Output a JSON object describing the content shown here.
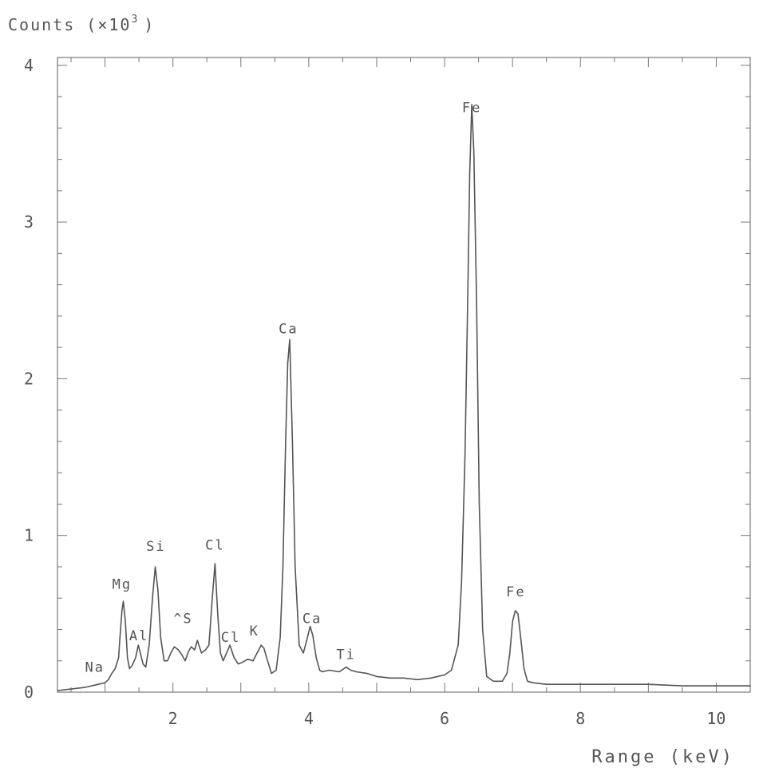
{
  "chart_data": {
    "type": "line",
    "title": "",
    "ylabel": "Counts (×10³)",
    "ylabel_base": "Counts (×10",
    "ylabel_exp": "3",
    "ylabel_close": ")",
    "xlabel": "Range (keV)",
    "xlim": [
      0.3,
      10.5
    ],
    "ylim": [
      0,
      4.05
    ],
    "x_ticks": [
      2,
      4,
      6,
      8,
      10
    ],
    "x_tick_labels": [
      "2",
      "4",
      "6",
      "8",
      "10"
    ],
    "y_ticks": [
      0,
      1,
      2,
      3,
      4
    ],
    "y_tick_labels": [
      "0",
      "1",
      "2",
      "3",
      "4"
    ],
    "grid": false,
    "series": [
      {
        "x": [
          0.3,
          0.5,
          0.7,
          0.9,
          1.0,
          1.05,
          1.1,
          1.15,
          1.2,
          1.22,
          1.25,
          1.27,
          1.3,
          1.33,
          1.36,
          1.4,
          1.45,
          1.49,
          1.52,
          1.56,
          1.6,
          1.65,
          1.7,
          1.74,
          1.78,
          1.82,
          1.87,
          1.92,
          1.97,
          2.02,
          2.08,
          2.13,
          2.18,
          2.23,
          2.27,
          2.32,
          2.36,
          2.42,
          2.48,
          2.53,
          2.58,
          2.62,
          2.66,
          2.7,
          2.74,
          2.79,
          2.84,
          2.9,
          2.96,
          3.02,
          3.1,
          3.18,
          3.24,
          3.3,
          3.34,
          3.38,
          3.45,
          3.52,
          3.58,
          3.62,
          3.66,
          3.69,
          3.72,
          3.76,
          3.8,
          3.86,
          3.92,
          3.97,
          4.02,
          4.06,
          4.11,
          4.16,
          4.2,
          4.3,
          4.45,
          4.55,
          4.62,
          4.7,
          4.85,
          5.0,
          5.2,
          5.4,
          5.6,
          5.8,
          6.0,
          6.1,
          6.2,
          6.25,
          6.3,
          6.34,
          6.37,
          6.4,
          6.43,
          6.47,
          6.51,
          6.56,
          6.62,
          6.72,
          6.85,
          6.92,
          6.96,
          7.0,
          7.04,
          7.08,
          7.12,
          7.17,
          7.22,
          7.3,
          7.5,
          8.0,
          8.5,
          9.0,
          9.5,
          10.0,
          10.5
        ],
        "y": [
          0.01,
          0.02,
          0.03,
          0.05,
          0.06,
          0.08,
          0.12,
          0.15,
          0.22,
          0.35,
          0.52,
          0.58,
          0.45,
          0.22,
          0.15,
          0.17,
          0.22,
          0.3,
          0.25,
          0.18,
          0.16,
          0.3,
          0.6,
          0.8,
          0.65,
          0.35,
          0.2,
          0.2,
          0.25,
          0.29,
          0.27,
          0.24,
          0.2,
          0.26,
          0.29,
          0.27,
          0.33,
          0.25,
          0.27,
          0.3,
          0.6,
          0.82,
          0.5,
          0.25,
          0.2,
          0.25,
          0.3,
          0.22,
          0.18,
          0.19,
          0.21,
          0.2,
          0.25,
          0.3,
          0.28,
          0.22,
          0.12,
          0.14,
          0.35,
          0.8,
          1.6,
          2.1,
          2.25,
          1.6,
          0.8,
          0.3,
          0.25,
          0.33,
          0.42,
          0.36,
          0.22,
          0.14,
          0.13,
          0.14,
          0.13,
          0.16,
          0.14,
          0.13,
          0.12,
          0.1,
          0.09,
          0.09,
          0.08,
          0.09,
          0.11,
          0.14,
          0.3,
          0.7,
          1.5,
          2.5,
          3.3,
          3.75,
          3.45,
          2.5,
          1.2,
          0.4,
          0.1,
          0.07,
          0.07,
          0.12,
          0.25,
          0.45,
          0.52,
          0.5,
          0.35,
          0.15,
          0.07,
          0.06,
          0.05,
          0.05,
          0.05,
          0.05,
          0.04,
          0.04,
          0.04
        ]
      }
    ],
    "annotations": [
      {
        "label": "Na",
        "x": 0.85,
        "y": 0.1
      },
      {
        "label": "Mg",
        "x": 1.25,
        "y": 0.63
      },
      {
        "label": "Al",
        "x": 1.5,
        "y": 0.3
      },
      {
        "label": "Si",
        "x": 1.75,
        "y": 0.87
      },
      {
        "label": "^S",
        "x": 2.15,
        "y": 0.41
      },
      {
        "label": "Cl",
        "x": 2.62,
        "y": 0.88
      },
      {
        "label": "Cl",
        "x": 2.85,
        "y": 0.29
      },
      {
        "label": "K",
        "x": 3.2,
        "y": 0.33
      },
      {
        "label": "Ca",
        "x": 3.7,
        "y": 2.26
      },
      {
        "label": "Ca",
        "x": 4.05,
        "y": 0.41
      },
      {
        "label": "Ti",
        "x": 4.55,
        "y": 0.18
      },
      {
        "label": "Fe",
        "x": 6.4,
        "y": 3.67
      },
      {
        "label": "Fe",
        "x": 7.05,
        "y": 0.58
      }
    ]
  }
}
